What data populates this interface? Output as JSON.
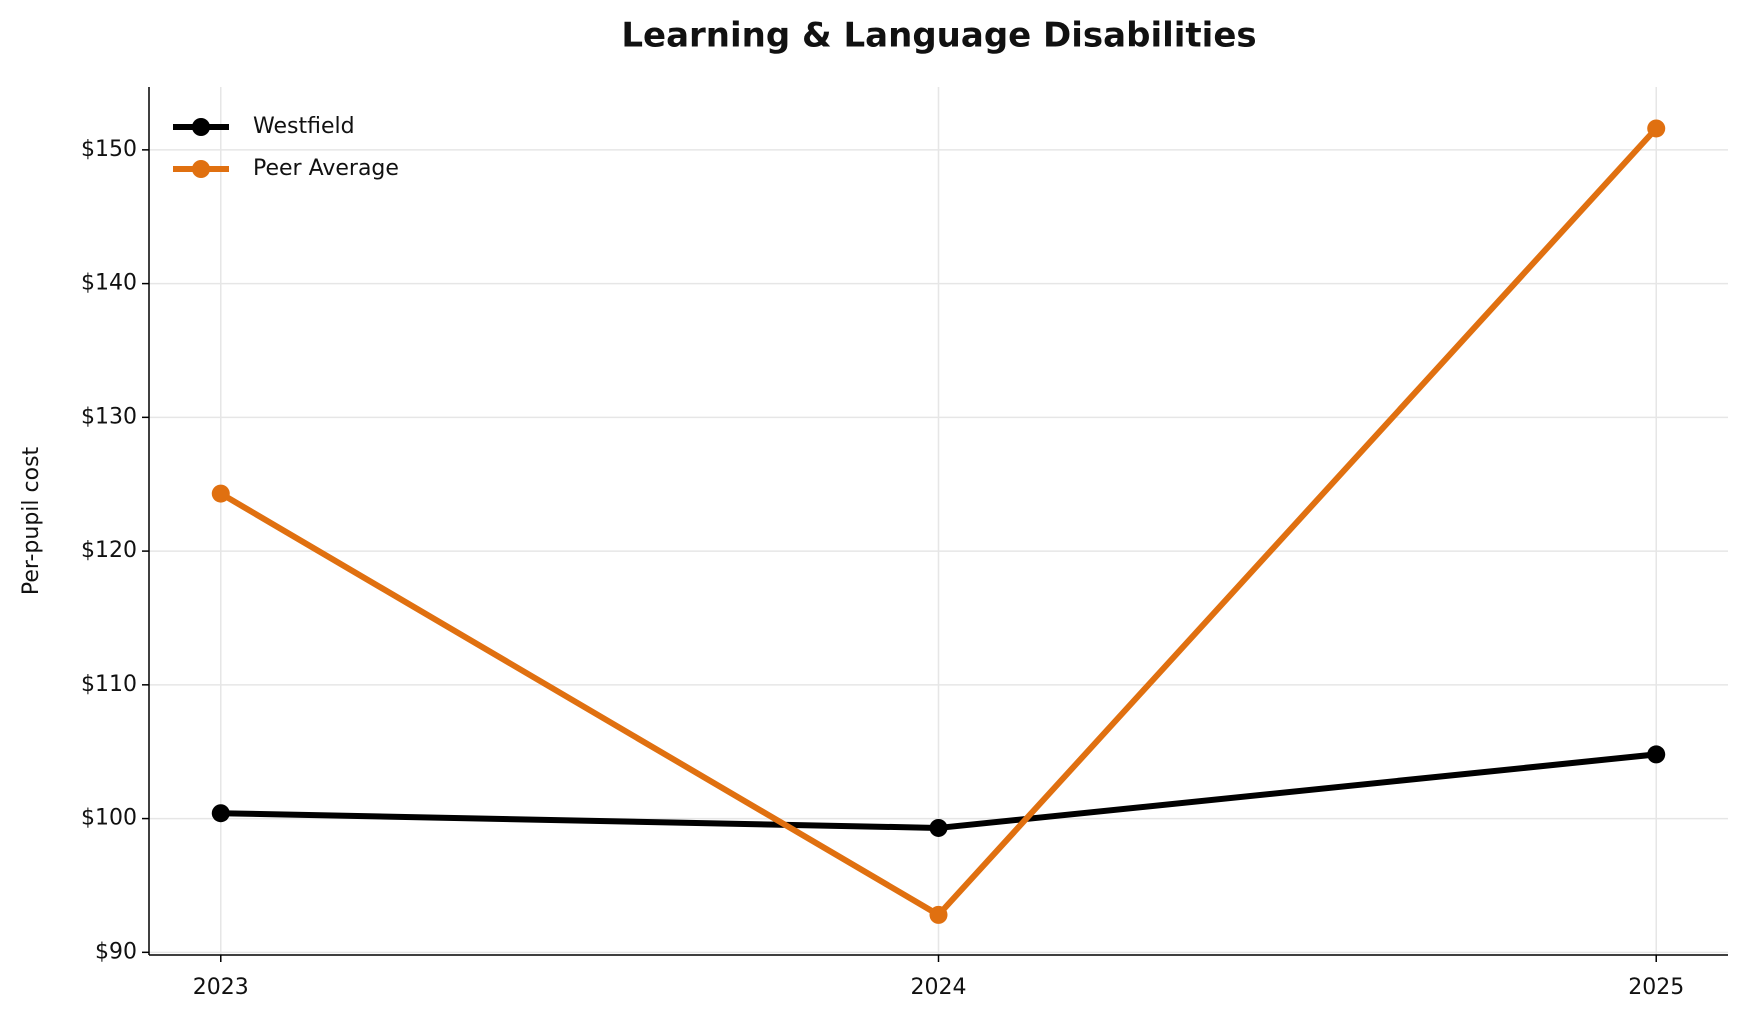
{
  "chart_data": {
    "type": "line",
    "title": "Learning & Language Disabilities",
    "y_label": "Per-pupil cost",
    "x": [
      2023,
      2024,
      2025
    ],
    "series": [
      {
        "name": "Westfield",
        "color": "#000000",
        "values": [
          100.4,
          99.3,
          104.8
        ]
      },
      {
        "name": "Peer Average",
        "color": "#e07010",
        "values": [
          124.3,
          92.8,
          151.6
        ]
      }
    ],
    "xlim": [
      2022.9,
      2025.1
    ],
    "xticks": [
      2023,
      2024,
      2025
    ],
    "ylim": [
      89.8,
      154.7
    ],
    "yticks": [
      {
        "value": 90,
        "label": "$90"
      },
      {
        "value": 100,
        "label": "$100"
      },
      {
        "value": 110,
        "label": "$110"
      },
      {
        "value": 120,
        "label": "$120"
      },
      {
        "value": 130,
        "label": "$130"
      },
      {
        "value": 140,
        "label": "$140"
      },
      {
        "value": 150,
        "label": "$150"
      }
    ],
    "grid": true,
    "legend": "upper left"
  }
}
